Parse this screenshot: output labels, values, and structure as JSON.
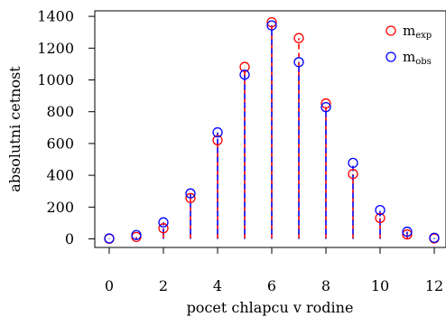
{
  "chart_data": {
    "type": "scatter",
    "title": "",
    "xlabel": "pocet chlapcu v rodine",
    "ylabel": "absolutni cetnost",
    "xlim": [
      -0.5,
      12.5
    ],
    "ylim": [
      -30,
      1420
    ],
    "xticks": [
      0,
      2,
      4,
      6,
      8,
      10,
      12
    ],
    "yticks": [
      0,
      200,
      400,
      600,
      800,
      1000,
      1200,
      1400
    ],
    "x": [
      0,
      1,
      2,
      3,
      4,
      5,
      6,
      7,
      8,
      9,
      10,
      11,
      12
    ],
    "series": [
      {
        "name_main": "m",
        "name_sub": "exp",
        "color": "#ff0000",
        "marker": "open-circle",
        "values": [
          1,
          12,
          67,
          257,
          621,
          1082,
          1363,
          1263,
          852,
          408,
          131,
          28,
          3
        ]
      },
      {
        "name_main": "m",
        "name_sub": "obs",
        "color": "#0000ff",
        "marker": "open-circle",
        "values": [
          3,
          24,
          104,
          286,
          670,
          1033,
          1343,
          1112,
          829,
          478,
          181,
          45,
          7
        ]
      }
    ],
    "stems": "dashed red/blue vertical lines from 0 to each point",
    "grid": false,
    "legend_position": "top-right"
  }
}
